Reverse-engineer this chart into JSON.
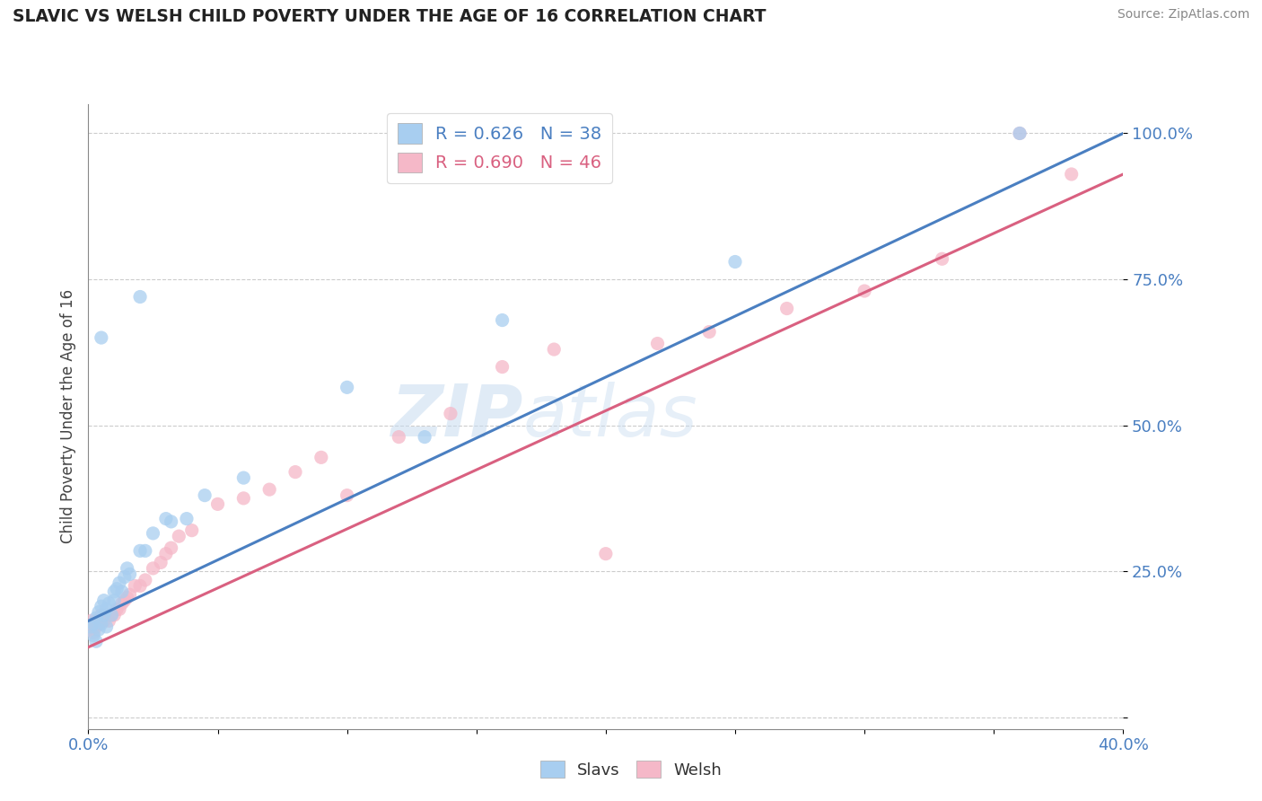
{
  "title": "SLAVIC VS WELSH CHILD POVERTY UNDER THE AGE OF 16 CORRELATION CHART",
  "source": "Source: ZipAtlas.com",
  "ylabel_label": "Child Poverty Under the Age of 16",
  "xlim": [
    0.0,
    0.4
  ],
  "ylim": [
    -0.02,
    1.05
  ],
  "slavs_color": "#A8CEF0",
  "welsh_color": "#F5B8C8",
  "slavs_line_color": "#4A7FC1",
  "welsh_line_color": "#D96080",
  "legend_R_slavs": "R = 0.626",
  "legend_N_slavs": "N = 38",
  "legend_R_welsh": "R = 0.690",
  "legend_N_welsh": "N = 46",
  "watermark_zip": "ZIP",
  "watermark_atlas": "atlas",
  "slavs_x": [
    0.001,
    0.002,
    0.002,
    0.003,
    0.003,
    0.004,
    0.004,
    0.005,
    0.005,
    0.006,
    0.006,
    0.007,
    0.007,
    0.008,
    0.009,
    0.01,
    0.01,
    0.011,
    0.012,
    0.013,
    0.014,
    0.015,
    0.016,
    0.02,
    0.022,
    0.025,
    0.03,
    0.032,
    0.038,
    0.045,
    0.06,
    0.1,
    0.13,
    0.16,
    0.25,
    0.36,
    0.02,
    0.005
  ],
  "slavs_y": [
    0.155,
    0.14,
    0.16,
    0.17,
    0.13,
    0.18,
    0.15,
    0.19,
    0.16,
    0.2,
    0.175,
    0.185,
    0.155,
    0.195,
    0.175,
    0.2,
    0.215,
    0.22,
    0.23,
    0.215,
    0.24,
    0.255,
    0.245,
    0.285,
    0.285,
    0.315,
    0.34,
    0.335,
    0.34,
    0.38,
    0.41,
    0.565,
    0.48,
    0.68,
    0.78,
    1.0,
    0.72,
    0.65
  ],
  "welsh_x": [
    0.001,
    0.001,
    0.002,
    0.003,
    0.003,
    0.004,
    0.005,
    0.005,
    0.006,
    0.007,
    0.008,
    0.009,
    0.01,
    0.011,
    0.012,
    0.013,
    0.014,
    0.015,
    0.016,
    0.018,
    0.02,
    0.022,
    0.025,
    0.028,
    0.03,
    0.032,
    0.035,
    0.04,
    0.05,
    0.06,
    0.07,
    0.08,
    0.09,
    0.1,
    0.12,
    0.14,
    0.16,
    0.18,
    0.2,
    0.22,
    0.24,
    0.27,
    0.3,
    0.33,
    0.36,
    0.38
  ],
  "welsh_y": [
    0.15,
    0.165,
    0.145,
    0.155,
    0.165,
    0.16,
    0.165,
    0.175,
    0.165,
    0.175,
    0.165,
    0.175,
    0.175,
    0.185,
    0.185,
    0.195,
    0.2,
    0.205,
    0.21,
    0.225,
    0.225,
    0.235,
    0.255,
    0.265,
    0.28,
    0.29,
    0.31,
    0.32,
    0.365,
    0.375,
    0.39,
    0.42,
    0.445,
    0.38,
    0.48,
    0.52,
    0.6,
    0.63,
    0.28,
    0.64,
    0.66,
    0.7,
    0.73,
    0.785,
    1.0,
    0.93
  ]
}
